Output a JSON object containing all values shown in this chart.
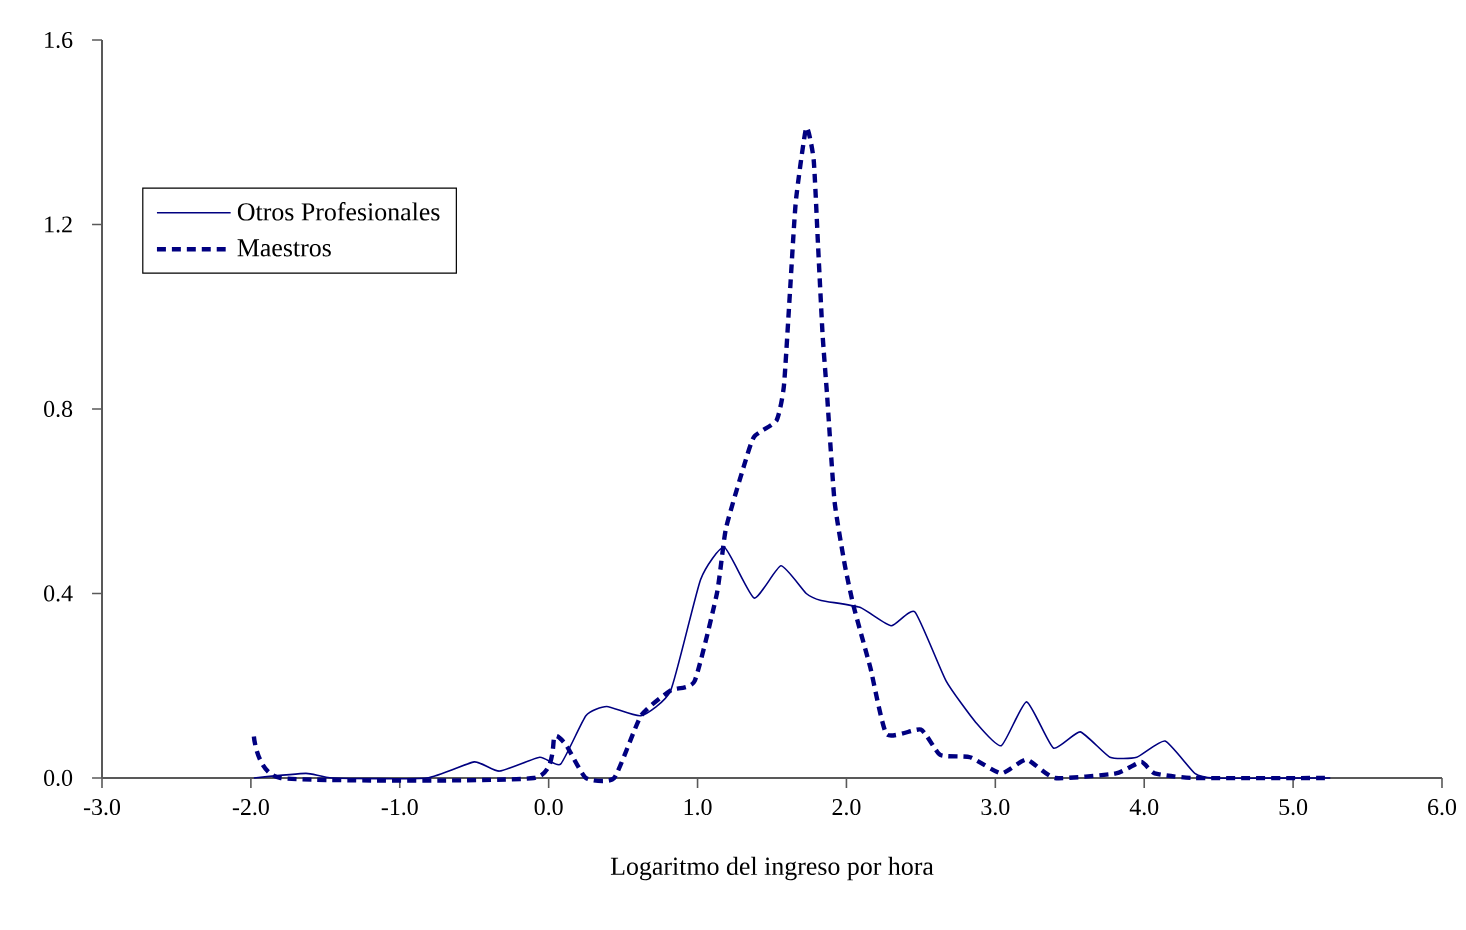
{
  "chart_data": {
    "type": "line",
    "xlabel": "Logaritmo del ingreso por hora",
    "xlim": [
      -3,
      6
    ],
    "ylim": [
      0,
      1.6
    ],
    "xticks": [
      {
        "value": -3,
        "label": "-3.0"
      },
      {
        "value": -2,
        "label": "-2.0"
      },
      {
        "value": -1,
        "label": "-1.0"
      },
      {
        "value": 0,
        "label": "0.0"
      },
      {
        "value": 1,
        "label": "1.0"
      },
      {
        "value": 2,
        "label": "2.0"
      },
      {
        "value": 3,
        "label": "3.0"
      },
      {
        "value": 4,
        "label": "4.0"
      },
      {
        "value": 5,
        "label": "5.0"
      },
      {
        "value": 6,
        "label": "6.0"
      }
    ],
    "yticks": [
      {
        "value": 0,
        "label": "0.0"
      },
      {
        "value": 0.4,
        "label": "0.4"
      },
      {
        "value": 0.8,
        "label": "0.8"
      },
      {
        "value": 1.2,
        "label": "1.2"
      },
      {
        "value": 1.6,
        "label": "1.6"
      }
    ],
    "legend": "top left",
    "grid": false,
    "marker": "none",
    "series": [
      {
        "name": "Otros Profesionales",
        "color": "#000080",
        "line_style": "solid",
        "x": [
          -1.98,
          -1.63,
          -1.45,
          -0.82,
          -0.5,
          -0.33,
          -0.06,
          0.08,
          0.25,
          0.39,
          0.62,
          0.82,
          1.02,
          1.18,
          1.38,
          1.56,
          1.73,
          1.83,
          2.09,
          2.3,
          2.46,
          2.67,
          2.87,
          3.04,
          3.21,
          3.39,
          3.57,
          3.77,
          3.95,
          4.14,
          4.34,
          4.47,
          5.25
        ],
        "values": [
          0,
          0.01,
          0,
          0,
          0.035,
          0.015,
          0.045,
          0.03,
          0.135,
          0.155,
          0.135,
          0.19,
          0.43,
          0.5,
          0.39,
          0.46,
          0.4,
          0.385,
          0.37,
          0.33,
          0.36,
          0.21,
          0.12,
          0.07,
          0.165,
          0.065,
          0.1,
          0.045,
          0.045,
          0.08,
          0.01,
          0,
          0
        ]
      },
      {
        "name": "Maestros",
        "color": "#000080",
        "line_style": "dashed",
        "x": [
          -1.98,
          -1.8,
          -0.1,
          0.04,
          0.12,
          0.25,
          0.44,
          0.62,
          0.82,
          0.98,
          1.13,
          1.19,
          1.31,
          1.38,
          1.53,
          1.58,
          1.62,
          1.66,
          1.73,
          1.78,
          1.81,
          1.84,
          1.87,
          1.92,
          1.99,
          2.05,
          2.16,
          2.27,
          2.5,
          2.63,
          2.83,
          3.04,
          3.21,
          3.4,
          3.81,
          3.98,
          4.07,
          4.34,
          5.25
        ],
        "values": [
          0.09,
          0,
          0,
          0.09,
          0.07,
          0,
          0,
          0.135,
          0.19,
          0.21,
          0.4,
          0.54,
          0.675,
          0.74,
          0.775,
          0.85,
          1.05,
          1.25,
          1.41,
          1.34,
          1.15,
          0.96,
          0.83,
          0.6,
          0.46,
          0.37,
          0.24,
          0.095,
          0.105,
          0.05,
          0.045,
          0.01,
          0.04,
          0,
          0.01,
          0.035,
          0.01,
          0,
          0
        ]
      }
    ]
  }
}
